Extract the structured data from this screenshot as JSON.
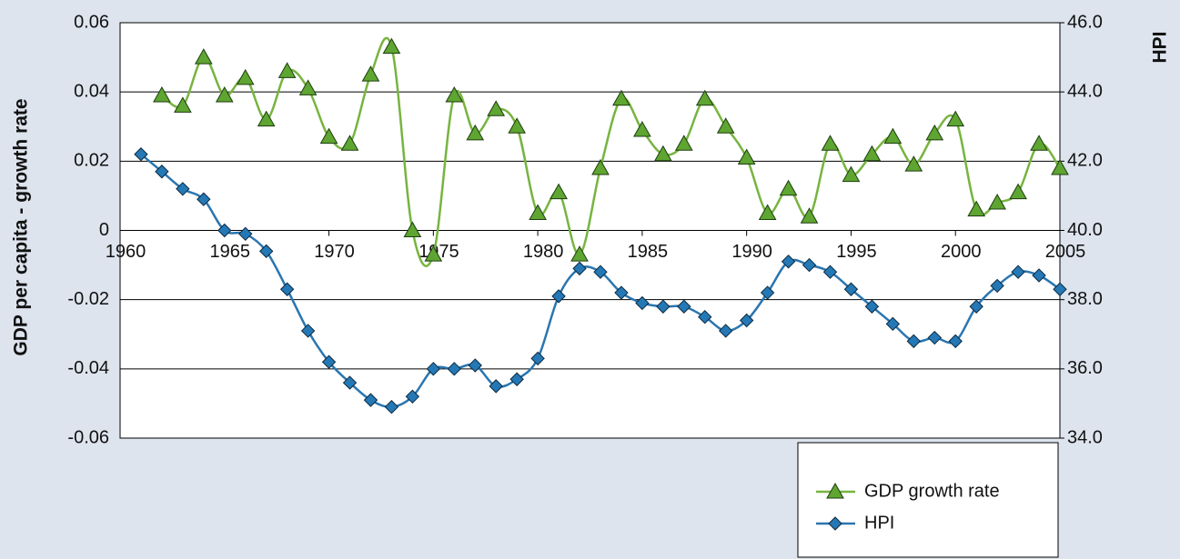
{
  "chart_data": {
    "type": "line",
    "y_label": "GDP per capita - growth rate",
    "y2_label": "HPI",
    "x": [
      1961,
      1962,
      1963,
      1964,
      1965,
      1966,
      1967,
      1968,
      1969,
      1970,
      1971,
      1972,
      1973,
      1974,
      1975,
      1976,
      1977,
      1978,
      1979,
      1980,
      1981,
      1982,
      1983,
      1984,
      1985,
      1986,
      1987,
      1988,
      1989,
      1990,
      1991,
      1992,
      1993,
      1994,
      1995,
      1996,
      1997,
      1998,
      1999,
      2000,
      2001,
      2002,
      2003,
      2004,
      2005
    ],
    "series": [
      {
        "name": "GDP growth rate",
        "color": "#77b43f",
        "marker": "triangle",
        "marker_color": "#5ea531",
        "values": [
          null,
          0.039,
          0.036,
          0.05,
          0.039,
          0.044,
          0.032,
          0.046,
          0.041,
          0.027,
          0.025,
          0.045,
          0.053,
          0.0,
          -0.007,
          0.039,
          0.028,
          0.035,
          0.03,
          0.005,
          0.011,
          -0.007,
          0.018,
          0.038,
          0.029,
          0.022,
          0.025,
          0.038,
          0.03,
          0.021,
          0.005,
          0.012,
          0.004,
          0.025,
          0.016,
          0.022,
          0.027,
          0.019,
          0.028,
          0.032,
          0.006,
          0.008,
          0.011,
          0.025,
          0.018
        ]
      },
      {
        "name": "HPI",
        "color": "#2a76b0",
        "marker": "diamond",
        "marker_color": "#2478b5",
        "axis": "y2",
        "values": [
          42.2,
          41.7,
          41.2,
          40.9,
          40.0,
          39.9,
          39.4,
          38.3,
          37.1,
          36.2,
          35.6,
          35.1,
          34.9,
          35.2,
          36.0,
          36.0,
          36.1,
          35.5,
          35.7,
          36.3,
          38.1,
          38.9,
          38.8,
          38.2,
          37.9,
          37.8,
          37.8,
          37.5,
          37.1,
          37.4,
          38.2,
          39.1,
          39.0,
          38.8,
          38.3,
          37.8,
          37.3,
          36.8,
          36.9,
          36.8,
          37.8,
          38.4,
          38.8,
          38.7,
          38.3
        ]
      }
    ],
    "xlim": [
      1960,
      2005
    ],
    "xticks": [
      1960,
      1965,
      1970,
      1975,
      1980,
      1985,
      1990,
      1995,
      2000,
      2005
    ],
    "ylim": [
      -0.06,
      0.06
    ],
    "yticks": [
      0.06,
      0.04,
      0.02,
      0,
      -0.02,
      -0.04,
      -0.06
    ],
    "y2lim": [
      34,
      46
    ],
    "y2ticks": [
      {
        "value": 46,
        "label": "46.0"
      },
      {
        "value": 44,
        "label": "44.0"
      },
      {
        "value": 42,
        "label": "42.0"
      },
      {
        "value": 40,
        "label": "40.0"
      },
      {
        "value": 38,
        "label": "38.0"
      },
      {
        "value": 36,
        "label": "36.0"
      },
      {
        "value": 34,
        "label": "34.0"
      }
    ],
    "grid": true,
    "smooth": true,
    "legend": "bottom-right"
  }
}
